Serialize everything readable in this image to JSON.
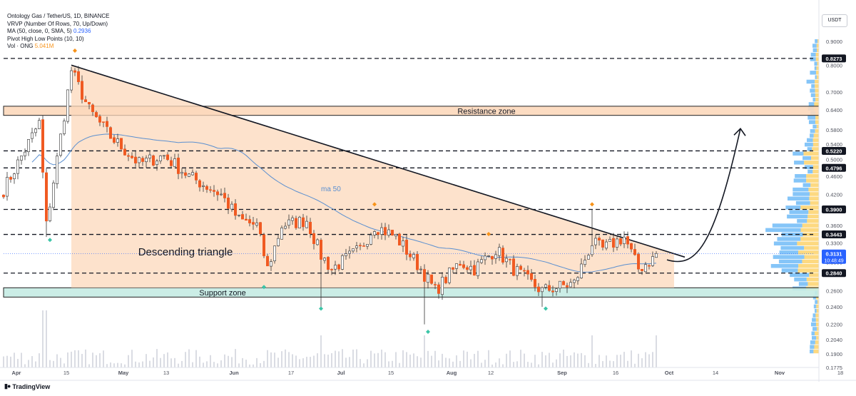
{
  "legend": {
    "symbol": "Ontology Gas / TetherUS, 1D, BINANCE",
    "vrvp": "VRVP (Number Of Rows, 70, Up/Down)",
    "ma_label": "MA (50, close, 0, SMA, 5)",
    "ma_value": "0.2936",
    "pivot": "Pivot High Low Points (10, 10)",
    "vol_label": "Vol · ONG",
    "vol_value": "5.041M"
  },
  "currency_button": "USDT",
  "brand": "TradingView",
  "brand_icon": "tradingview-logo-icon",
  "colors": {
    "up": "#ffffff",
    "down": "#f05a22",
    "wick": "#333333",
    "triangle_fill": "#fcd8bb",
    "resistance_fill": "#fcd8bb",
    "support_fill": "#c5ebe3",
    "ma": "#5a8fd0",
    "pivot_high": "#f7931a",
    "pivot_low": "#3cc5a8",
    "volume": "#d1d4dc"
  },
  "chart_data": {
    "type": "candlestick",
    "title": "Ontology Gas / TetherUS, 1D, BINANCE",
    "x_axis": {
      "ticks": [
        "Apr",
        "15",
        "May",
        "13",
        "Jun",
        "17",
        "Jul",
        "15",
        "Aug",
        "12",
        "Sep",
        "16",
        "Oct",
        "14",
        "Nov",
        "18"
      ],
      "tick_days": [
        0,
        14,
        30,
        42,
        61,
        77,
        91,
        105,
        122,
        133,
        153,
        168,
        183,
        196,
        214,
        231
      ]
    },
    "y_axis": {
      "scale": "log",
      "ylim": [
        0.1775,
        0.96
      ],
      "ticks": [
        0.9,
        0.8,
        0.7,
        0.64,
        0.58,
        0.54,
        0.5,
        0.46,
        0.42,
        0.36,
        0.33,
        0.3,
        0.26,
        0.24,
        0.22,
        0.204,
        0.19,
        0.1775
      ]
    },
    "price_labels": [
      {
        "value": "0.8273",
        "highlight": false
      },
      {
        "value": "0.5220",
        "highlight": false
      },
      {
        "value": "0.4796",
        "highlight": false
      },
      {
        "value": "0.3900",
        "highlight": false
      },
      {
        "value": "0.3443",
        "highlight": false
      },
      {
        "value": "0.3131",
        "highlight": true,
        "sub": "10:48:49"
      },
      {
        "value": "0.2840",
        "highlight": false
      }
    ],
    "horizontal_levels": [
      0.8273,
      0.522,
      0.4796,
      0.39,
      0.3443,
      0.284
    ],
    "current_price": 0.3131,
    "zones": [
      {
        "label": "Resistance zone",
        "low": 0.623,
        "high": 0.652
      },
      {
        "label": "Support zone",
        "low": 0.252,
        "high": 0.264
      }
    ],
    "triangle": {
      "label": "Descending triangle",
      "top_start": [
        19,
        0.8
      ],
      "top_end": [
        185,
        0.318
      ],
      "base": 0.264,
      "end_day": 188
    },
    "ma_label": "ma 50",
    "anchors": [
      {
        "day": 0,
        "price": 0.43
      },
      {
        "day": 10,
        "price": 0.6
      },
      {
        "day": 12,
        "price": 0.36
      },
      {
        "day": 19,
        "price": 0.78
      },
      {
        "day": 24,
        "price": 0.64
      },
      {
        "day": 30,
        "price": 0.56
      },
      {
        "day": 38,
        "price": 0.49
      },
      {
        "day": 45,
        "price": 0.51
      },
      {
        "day": 52,
        "price": 0.46
      },
      {
        "day": 61,
        "price": 0.42
      },
      {
        "day": 66,
        "price": 0.37
      },
      {
        "day": 71,
        "price": 0.36
      },
      {
        "day": 74,
        "price": 0.29
      },
      {
        "day": 78,
        "price": 0.36
      },
      {
        "day": 85,
        "price": 0.37
      },
      {
        "day": 89,
        "price": 0.31
      },
      {
        "day": 92,
        "price": 0.29
      },
      {
        "day": 100,
        "price": 0.32
      },
      {
        "day": 104,
        "price": 0.36
      },
      {
        "day": 110,
        "price": 0.34
      },
      {
        "day": 117,
        "price": 0.29
      },
      {
        "day": 121,
        "price": 0.26
      },
      {
        "day": 128,
        "price": 0.3
      },
      {
        "day": 132,
        "price": 0.29
      },
      {
        "day": 138,
        "price": 0.32
      },
      {
        "day": 143,
        "price": 0.29
      },
      {
        "day": 148,
        "price": 0.27
      },
      {
        "day": 151,
        "price": 0.26
      },
      {
        "day": 160,
        "price": 0.27
      },
      {
        "day": 165,
        "price": 0.33
      },
      {
        "day": 168,
        "price": 0.32
      },
      {
        "day": 174,
        "price": 0.34
      },
      {
        "day": 178,
        "price": 0.29
      },
      {
        "day": 182,
        "price": 0.305
      },
      {
        "day": 183,
        "price": 0.3131
      }
    ],
    "spike_days": [
      {
        "day": 12,
        "low": 0.34
      },
      {
        "day": 89,
        "low": 0.24
      },
      {
        "day": 118,
        "low": 0.22
      },
      {
        "day": 151,
        "low": 0.24
      },
      {
        "day": 165,
        "high": 0.39
      }
    ],
    "pivots": [
      {
        "type": "high",
        "day": 20,
        "price": 0.86
      },
      {
        "type": "high",
        "day": 104,
        "price": 0.4
      },
      {
        "type": "high",
        "day": 136,
        "price": 0.345
      },
      {
        "type": "high",
        "day": 165,
        "price": 0.4
      },
      {
        "type": "low",
        "day": 13,
        "price": 0.335
      },
      {
        "type": "low",
        "day": 73,
        "price": 0.265
      },
      {
        "type": "low",
        "day": 89,
        "price": 0.238
      },
      {
        "type": "low",
        "day": 119,
        "price": 0.212
      },
      {
        "type": "low",
        "day": 152,
        "price": 0.238
      }
    ],
    "projection": {
      "from": [
        185,
        0.31
      ],
      "to": [
        198,
        0.6
      ]
    }
  }
}
